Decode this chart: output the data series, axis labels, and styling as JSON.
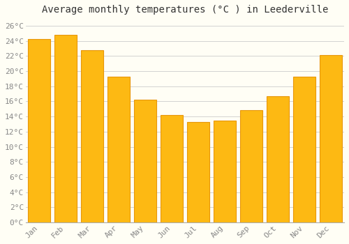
{
  "title": "Average monthly temperatures (°C ) in Leederville",
  "months": [
    "Jan",
    "Feb",
    "Mar",
    "Apr",
    "May",
    "Jun",
    "Jul",
    "Aug",
    "Sep",
    "Oct",
    "Nov",
    "Dec"
  ],
  "values": [
    24.3,
    24.8,
    22.8,
    19.3,
    16.2,
    14.2,
    13.3,
    13.5,
    14.8,
    16.7,
    19.3,
    22.1
  ],
  "bar_color": "#FDB913",
  "bar_edge_color": "#E8960A",
  "background_color": "#FFFEF5",
  "plot_bg_color": "#FFFEF5",
  "grid_color": "#CCCCCC",
  "ylim": [
    0,
    27
  ],
  "yticks": [
    0,
    2,
    4,
    6,
    8,
    10,
    12,
    14,
    16,
    18,
    20,
    22,
    24,
    26
  ],
  "ytick_labels": [
    "0°C",
    "2°C",
    "4°C",
    "6°C",
    "8°C",
    "10°C",
    "12°C",
    "14°C",
    "16°C",
    "18°C",
    "20°C",
    "22°C",
    "24°C",
    "26°C"
  ],
  "title_fontsize": 10,
  "tick_fontsize": 8,
  "tick_font": "monospace",
  "bar_width": 0.85
}
